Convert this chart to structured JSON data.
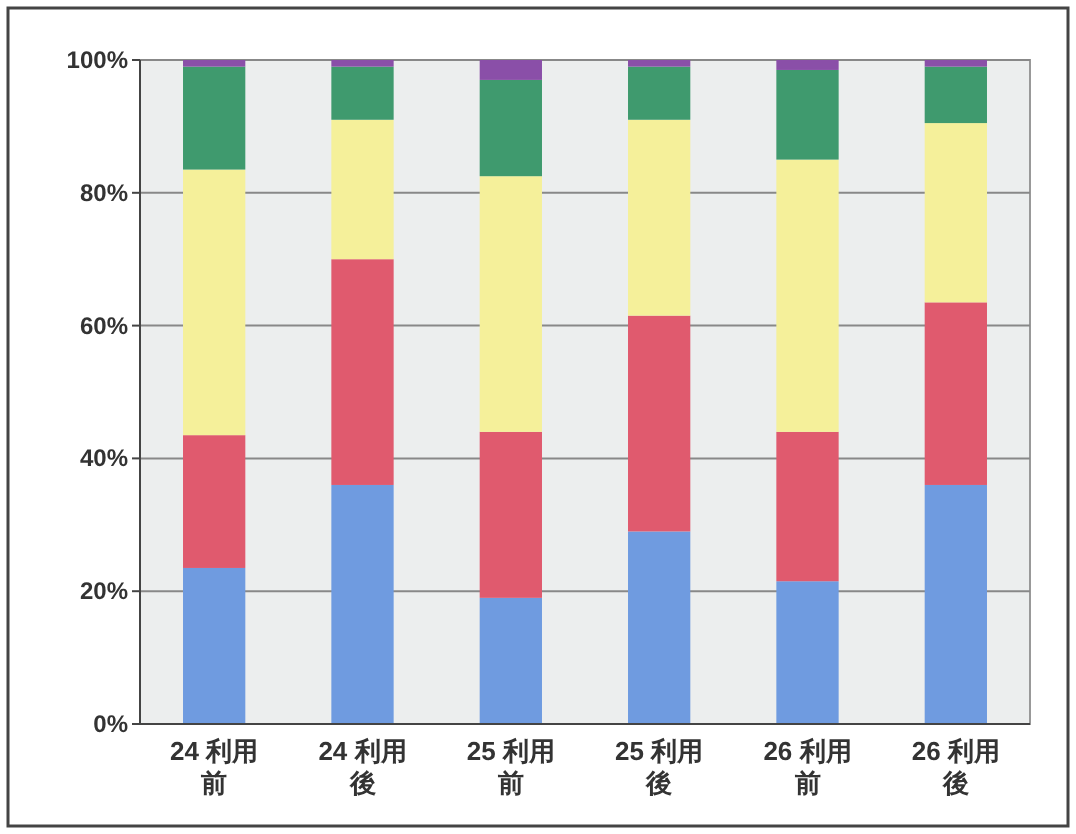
{
  "chart_data": {
    "type": "bar",
    "stacked": true,
    "categories": [
      "24 利用前",
      "24 利用後",
      "25 利用前",
      "25 利用後",
      "26 利用前",
      "26 利用後"
    ],
    "series": [
      {
        "color": "#6f9be0",
        "values": [
          23.5,
          36,
          19,
          29,
          21.5,
          36
        ]
      },
      {
        "color": "#e05a6e",
        "values": [
          20,
          34,
          25,
          32.5,
          22.5,
          27.5
        ]
      },
      {
        "color": "#f5f09a",
        "values": [
          40,
          21,
          38.5,
          29.5,
          41,
          27
        ]
      },
      {
        "color": "#3f9a6e",
        "values": [
          15.5,
          8,
          14.5,
          8,
          13.5,
          8.5
        ]
      },
      {
        "color": "#8a4fa8",
        "values": [
          1,
          1,
          3,
          1,
          1.5,
          1
        ]
      }
    ],
    "ylim": [
      0,
      100
    ],
    "yticks": [
      {
        "value": 0,
        "label": "0%"
      },
      {
        "value": 20,
        "label": "20%"
      },
      {
        "value": 40,
        "label": "40%"
      },
      {
        "value": 60,
        "label": "60%"
      },
      {
        "value": 80,
        "label": "80%"
      },
      {
        "value": 100,
        "label": "100%"
      }
    ],
    "grid": "y"
  }
}
